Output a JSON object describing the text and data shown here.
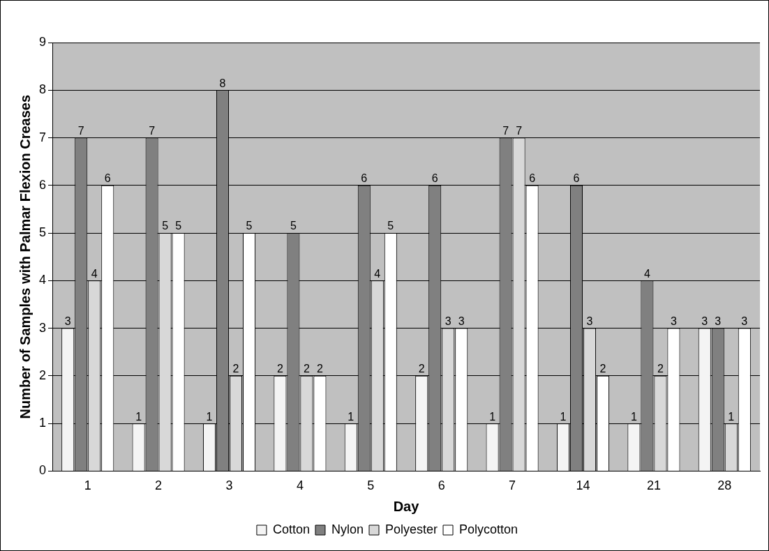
{
  "chart_data": {
    "type": "bar",
    "xlabel": "Day",
    "ylabel": "Number of Samples with Palmar Flexion Creases",
    "categories": [
      "1",
      "2",
      "3",
      "4",
      "5",
      "6",
      "7",
      "14",
      "21",
      "28"
    ],
    "series": [
      {
        "name": "Cotton",
        "color": "#f4f4f4",
        "values": [
          3,
          1,
          1,
          2,
          1,
          2,
          1,
          1,
          1,
          3
        ]
      },
      {
        "name": "Nylon",
        "color": "#808080",
        "values": [
          7,
          7,
          8,
          5,
          6,
          6,
          7,
          6,
          4,
          3
        ]
      },
      {
        "name": "Polyester",
        "color": "#d8d8d8",
        "values": [
          4,
          5,
          2,
          2,
          4,
          3,
          7,
          3,
          2,
          1
        ]
      },
      {
        "name": "Polycotton",
        "color": "#ffffff",
        "values": [
          6,
          5,
          5,
          2,
          5,
          3,
          6,
          2,
          3,
          3
        ]
      }
    ],
    "ylim": [
      0,
      9
    ],
    "yticks": [
      0,
      1,
      2,
      3,
      4,
      5,
      6,
      7,
      8,
      9
    ],
    "grid": "y",
    "legend": "bottom",
    "data_labels": true
  }
}
